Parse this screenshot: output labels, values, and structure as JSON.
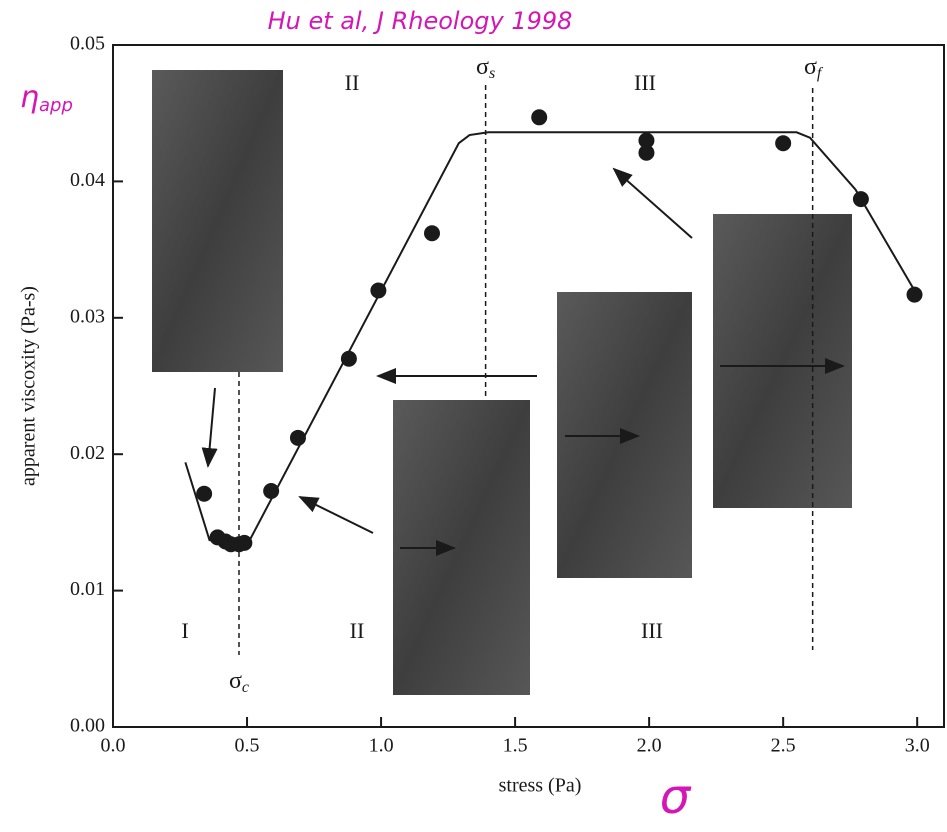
{
  "chart_data": {
    "type": "scatter",
    "x_label": "stress (Pa)",
    "y_label": "apparent viscoxity (Pa-s)",
    "xlim": [
      0,
      3.1
    ],
    "ylim": [
      0,
      0.05
    ],
    "xticks": [
      {
        "value": 0,
        "label": "0.0"
      },
      0.5,
      {
        "value": 1,
        "label": "1.0"
      },
      1.5,
      {
        "value": 2,
        "label": "2.0"
      },
      2.5,
      {
        "value": 3,
        "label": "3.0"
      }
    ],
    "yticks": [
      {
        "value": 0,
        "label": "0.00"
      },
      0.01,
      0.02,
      0.03,
      0.04,
      0.05
    ],
    "points": {
      "color": "#1a1a1a",
      "x": [
        0.34,
        0.39,
        0.42,
        0.44,
        0.47,
        0.49,
        0.59,
        0.69,
        0.88,
        0.99,
        1.19,
        1.59,
        1.99,
        1.99,
        2.5,
        2.79,
        2.99
      ],
      "values": [
        0.0171,
        0.0139,
        0.0136,
        0.0134,
        0.0134,
        0.0135,
        0.0173,
        0.0212,
        0.027,
        0.032,
        0.0362,
        0.0447,
        0.043,
        0.0421,
        0.0428,
        0.0387,
        0.0317
      ]
    },
    "curve": {
      "color": "#1a1a1a",
      "x": [
        0.27,
        0.36,
        0.51,
        1.29,
        1.33,
        1.4,
        2.55,
        2.6,
        2.77,
        2.99
      ],
      "values": [
        0.0194,
        0.0137,
        0.0137,
        0.0428,
        0.0434,
        0.0436,
        0.0436,
        0.0432,
        0.0394,
        0.032
      ]
    },
    "stress_markers": [
      {
        "value": 0.47,
        "symbol": "σ",
        "sub": "c"
      },
      {
        "value": 1.39,
        "symbol": "σ",
        "sub": "s"
      },
      {
        "value": 2.61,
        "symbol": "σ",
        "sub": "f"
      }
    ],
    "region_labels": [
      "II",
      "III",
      "I",
      "II",
      "III"
    ],
    "handwritten": {
      "title": "Hu et al, J Rheology 1998",
      "eta": "η",
      "eta_sub": "app",
      "sigma": "σ"
    }
  }
}
